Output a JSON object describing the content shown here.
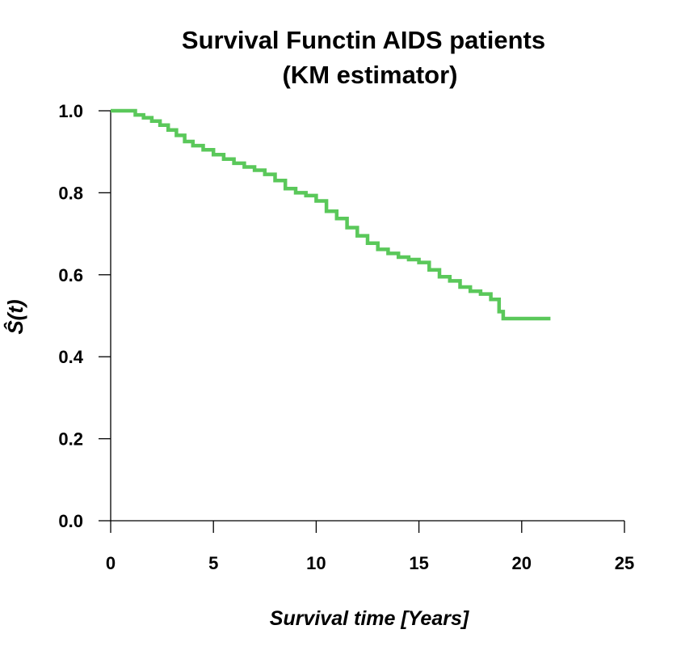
{
  "chart_data": {
    "type": "line",
    "step": true,
    "title_lines": [
      "Survival Functin AIDS patients",
      "(KM estimator)"
    ],
    "xlabel": "Survival time [Years]",
    "ylabel": "Ŝ(t)",
    "xlim": [
      0,
      25
    ],
    "ylim": [
      0,
      1
    ],
    "xticks": [
      0,
      5,
      10,
      15,
      20,
      25
    ],
    "xtick_labels": [
      "0",
      "5",
      "10",
      "15",
      "20",
      "25"
    ],
    "yticks": [
      0,
      0.2,
      0.4,
      0.6,
      0.8,
      1.0
    ],
    "ytick_labels": [
      "0.0",
      "0.2",
      "0.4",
      "0.6",
      "0.8",
      "1.0"
    ],
    "grid": false,
    "series": [
      {
        "color": "#5ac85a",
        "points": [
          [
            0,
            1.0
          ],
          [
            0.9,
            1.0
          ],
          [
            1.2,
            0.99
          ],
          [
            1.6,
            0.983
          ],
          [
            2.0,
            0.975
          ],
          [
            2.4,
            0.965
          ],
          [
            2.8,
            0.953
          ],
          [
            3.2,
            0.94
          ],
          [
            3.6,
            0.925
          ],
          [
            4.0,
            0.915
          ],
          [
            4.5,
            0.905
          ],
          [
            5.0,
            0.893
          ],
          [
            5.5,
            0.882
          ],
          [
            6.0,
            0.872
          ],
          [
            6.5,
            0.863
          ],
          [
            7.0,
            0.855
          ],
          [
            7.5,
            0.845
          ],
          [
            8.0,
            0.83
          ],
          [
            8.5,
            0.81
          ],
          [
            9.0,
            0.8
          ],
          [
            9.5,
            0.793
          ],
          [
            10.0,
            0.78
          ],
          [
            10.5,
            0.755
          ],
          [
            11.0,
            0.737
          ],
          [
            11.5,
            0.715
          ],
          [
            12.0,
            0.695
          ],
          [
            12.5,
            0.677
          ],
          [
            13.0,
            0.662
          ],
          [
            13.5,
            0.652
          ],
          [
            14.0,
            0.643
          ],
          [
            14.5,
            0.637
          ],
          [
            15.0,
            0.63
          ],
          [
            15.5,
            0.612
          ],
          [
            16.0,
            0.595
          ],
          [
            16.5,
            0.585
          ],
          [
            17.0,
            0.57
          ],
          [
            17.5,
            0.56
          ],
          [
            18.0,
            0.553
          ],
          [
            18.5,
            0.54
          ],
          [
            18.9,
            0.51
          ],
          [
            19.1,
            0.493
          ],
          [
            21.4,
            0.493
          ]
        ]
      }
    ]
  }
}
